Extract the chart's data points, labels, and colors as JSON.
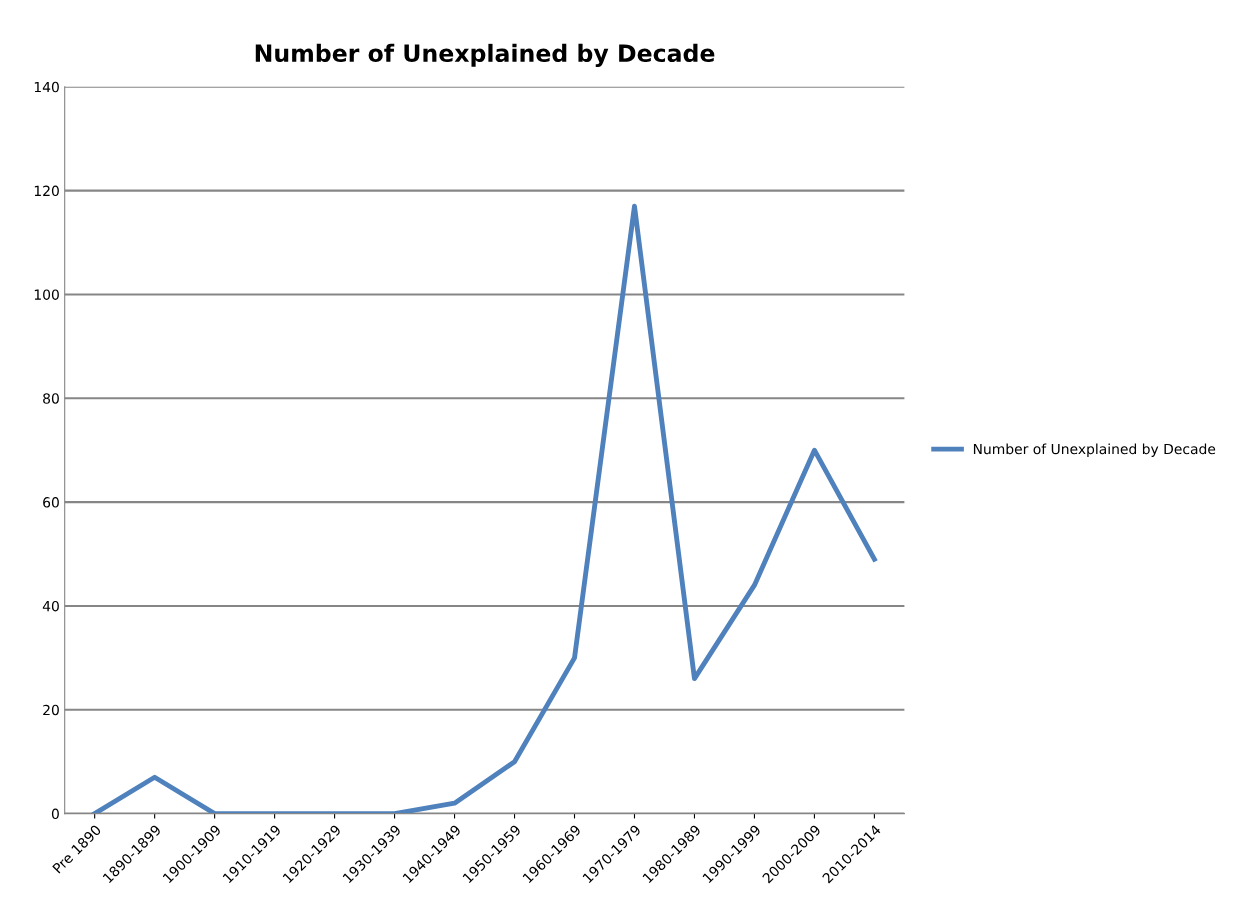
{
  "chart_data": {
    "type": "line",
    "title": "Number of Unexplained by Decade",
    "categories": [
      "Pre 1890",
      "1890-1899",
      "1900-1909",
      "1910-1919",
      "1920-1929",
      "1930-1939",
      "1940-1949",
      "1950-1959",
      "1960-1969",
      "1970-1979",
      "1980-1989",
      "1990-1999",
      "2000-2009",
      "2010-2014"
    ],
    "series": [
      {
        "name": "Number of Unexplained by Decade",
        "color": "#4f81bd",
        "values": [
          0,
          7,
          0,
          0,
          0,
          0,
          2,
          10,
          30,
          117,
          26,
          44,
          70,
          49
        ]
      }
    ],
    "ylim": [
      0,
      140
    ],
    "yticks": [
      0,
      20,
      40,
      60,
      80,
      100,
      120,
      140
    ],
    "grid": "y",
    "legend": "right",
    "marker": "none",
    "line_style": "solid"
  }
}
